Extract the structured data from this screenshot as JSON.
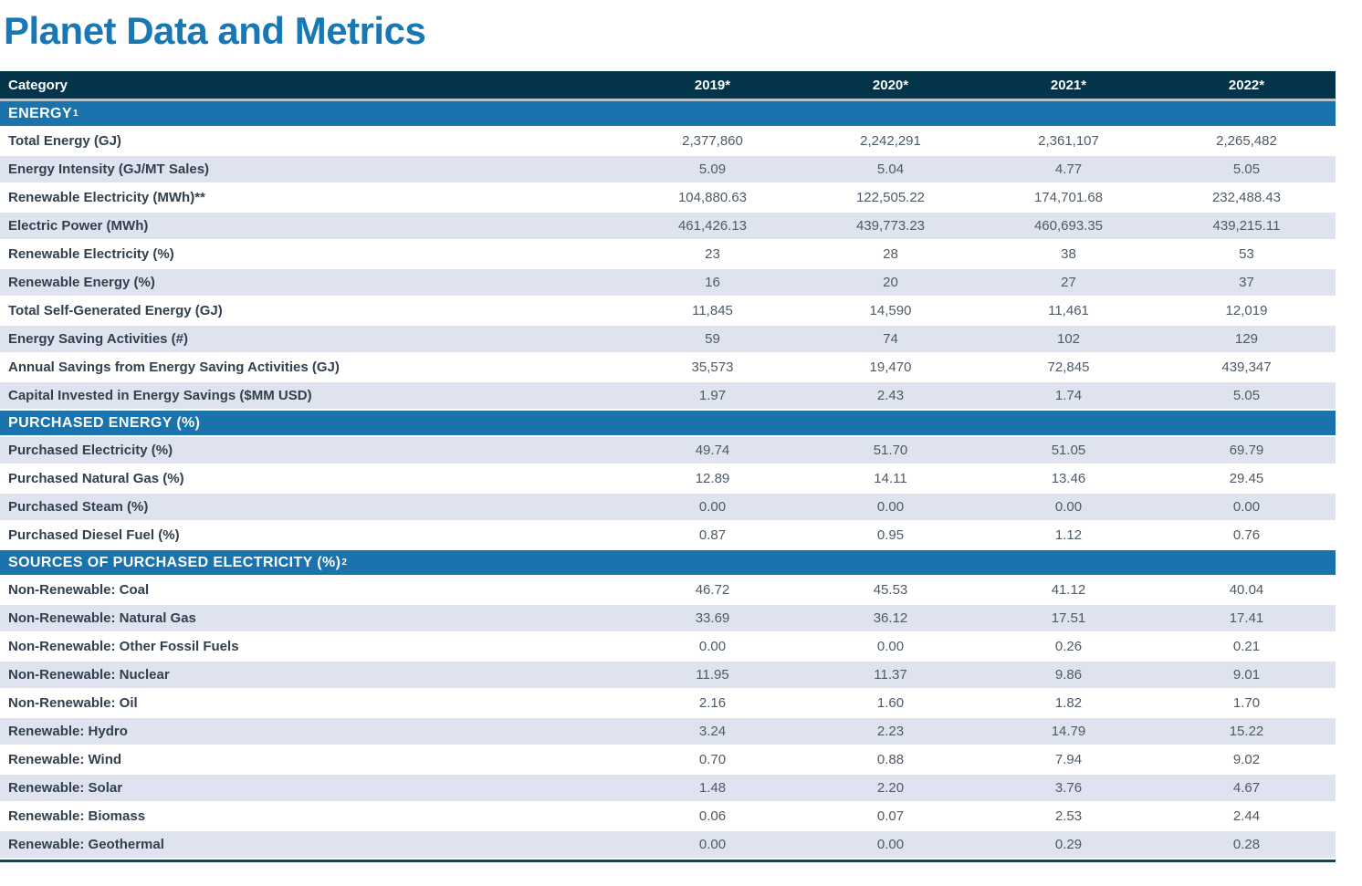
{
  "page_title": "Planet Data and Metrics",
  "colors": {
    "title_blue": "#1878b5",
    "header_navy": "#04344a",
    "section_blue": "#1b73ad",
    "row_shade": "#dfe3ef",
    "header_separator": "#b4c0ca",
    "table_bottom_border": "#1d4156",
    "label_text": "#32404d",
    "value_text": "#4e5a65"
  },
  "table": {
    "header": {
      "category": "Category",
      "years": [
        "2019*",
        "2020*",
        "2021*",
        "2022*"
      ]
    },
    "sections": [
      {
        "title": "ENERGY",
        "superscript": "1",
        "first_row_shaded": false,
        "rows": [
          {
            "label": "Total Energy (GJ)",
            "values": [
              "2,377,860",
              "2,242,291",
              "2,361,107",
              "2,265,482"
            ]
          },
          {
            "label": "Energy Intensity (GJ/MT Sales)",
            "values": [
              "5.09",
              "5.04",
              "4.77",
              "5.05"
            ]
          },
          {
            "label": "Renewable Electricity (MWh)**",
            "values": [
              "104,880.63",
              "122,505.22",
              "174,701.68",
              "232,488.43"
            ]
          },
          {
            "label": "Electric Power (MWh)",
            "values": [
              "461,426.13",
              "439,773.23",
              "460,693.35",
              "439,215.11"
            ]
          },
          {
            "label": "Renewable Electricity (%)",
            "values": [
              "23",
              "28",
              "38",
              "53"
            ]
          },
          {
            "label": "Renewable Energy (%)",
            "values": [
              "16",
              "20",
              "27",
              "37"
            ]
          },
          {
            "label": "Total Self-Generated Energy (GJ)",
            "values": [
              "11,845",
              "14,590",
              "11,461",
              "12,019"
            ]
          },
          {
            "label": "Energy Saving Activities (#)",
            "values": [
              "59",
              "74",
              "102",
              "129"
            ]
          },
          {
            "label": "Annual Savings from Energy Saving Activities (GJ)",
            "values": [
              "35,573",
              "19,470",
              "72,845",
              "439,347"
            ]
          },
          {
            "label": "Capital Invested in Energy Savings ($MM USD)",
            "values": [
              "1.97",
              "2.43",
              "1.74",
              "5.05"
            ]
          }
        ]
      },
      {
        "title": "PURCHASED ENERGY (%)",
        "superscript": "",
        "first_row_shaded": true,
        "rows": [
          {
            "label": "Purchased Electricity (%)",
            "values": [
              "49.74",
              "51.70",
              "51.05",
              "69.79"
            ]
          },
          {
            "label": "Purchased Natural Gas (%)",
            "values": [
              "12.89",
              "14.11",
              "13.46",
              "29.45"
            ]
          },
          {
            "label": "Purchased Steam (%)",
            "values": [
              "0.00",
              "0.00",
              "0.00",
              "0.00"
            ]
          },
          {
            "label": "Purchased Diesel Fuel (%)",
            "values": [
              "0.87",
              "0.95",
              "1.12",
              "0.76"
            ]
          }
        ]
      },
      {
        "title": "SOURCES OF PURCHASED ELECTRICITY (%)",
        "superscript": "2",
        "first_row_shaded": false,
        "rows": [
          {
            "label": "Non-Renewable: Coal",
            "values": [
              "46.72",
              "45.53",
              "41.12",
              "40.04"
            ]
          },
          {
            "label": "Non-Renewable: Natural Gas",
            "values": [
              "33.69",
              "36.12",
              "17.51",
              "17.41"
            ]
          },
          {
            "label": "Non-Renewable: Other Fossil Fuels",
            "values": [
              "0.00",
              "0.00",
              "0.26",
              "0.21"
            ]
          },
          {
            "label": "Non-Renewable: Nuclear",
            "values": [
              "11.95",
              "11.37",
              "9.86",
              "9.01"
            ]
          },
          {
            "label": "Non-Renewable: Oil",
            "values": [
              "2.16",
              "1.60",
              "1.82",
              "1.70"
            ]
          },
          {
            "label": "Renewable: Hydro",
            "values": [
              "3.24",
              "2.23",
              "14.79",
              "15.22"
            ]
          },
          {
            "label": "Renewable: Wind",
            "values": [
              "0.70",
              "0.88",
              "7.94",
              "9.02"
            ]
          },
          {
            "label": "Renewable: Solar",
            "values": [
              "1.48",
              "2.20",
              "3.76",
              "4.67"
            ]
          },
          {
            "label": "Renewable: Biomass",
            "values": [
              "0.06",
              "0.07",
              "2.53",
              "2.44"
            ]
          },
          {
            "label": "Renewable: Geothermal",
            "values": [
              "0.00",
              "0.00",
              "0.29",
              "0.28"
            ]
          }
        ]
      }
    ]
  }
}
